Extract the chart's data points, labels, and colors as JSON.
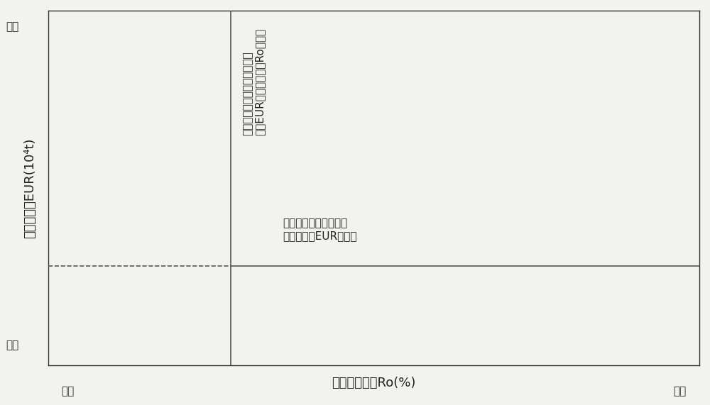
{
  "title": "",
  "xlabel": "有机质成熟度Ro(%)",
  "ylabel": "最终采收量EUR(10⁴t)",
  "x_low_label": "低值",
  "x_high_label": "高值",
  "y_low_label": "低值",
  "y_high_label": "高值",
  "vertical_line_x": 0.28,
  "horizontal_line_y": 0.28,
  "vertical_annotation": "现有经济技术条件的商业油气\n产量EUR下限值对应的Ro下限值",
  "horizontal_annotation": "现有经济技术条件的商\n业油气产量EUR下限值",
  "xlim": [
    0,
    1
  ],
  "ylim": [
    0,
    1
  ],
  "background_color": "#f2f2ee",
  "line_color": "#555555",
  "dashed_color": "#555555",
  "solid_color": "#555555",
  "font_size_labels": 13,
  "font_size_ticks": 11,
  "font_size_annotation": 11
}
